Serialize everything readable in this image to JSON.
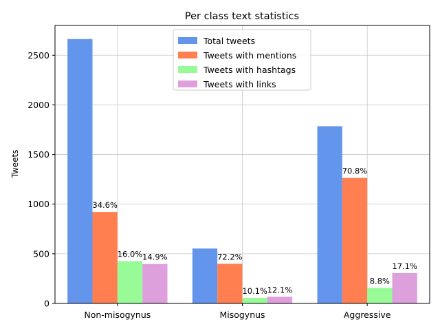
{
  "chart_data": {
    "type": "bar",
    "title": "Per class text statistics",
    "xlabel": "",
    "ylabel": "Tweets",
    "categories": [
      "Non-misogynus",
      "Misogynus",
      "Aggressive"
    ],
    "ylim": [
      0,
      2800
    ],
    "yticks": [
      0,
      500,
      1000,
      1500,
      2000,
      2500
    ],
    "grid": true,
    "legend_position": "top-center",
    "series": [
      {
        "name": "Total tweets",
        "color": "#6495ED",
        "values": [
          2663,
          553,
          1785
        ],
        "labels": [
          "",
          "",
          ""
        ]
      },
      {
        "name": "Tweets with mentions",
        "color": "#FF7F50",
        "values": [
          921,
          399,
          1264
        ],
        "labels": [
          "34.6%",
          "72.2%",
          "70.8%"
        ]
      },
      {
        "name": "Tweets with hashtags",
        "color": "#98FB98",
        "values": [
          426,
          56,
          157
        ],
        "labels": [
          "16.0%",
          "10.1%",
          "8.8%"
        ]
      },
      {
        "name": "Tweets with links",
        "color": "#DDA0DD",
        "values": [
          397,
          67,
          305
        ],
        "labels": [
          "14.9%",
          "12.1%",
          "17.1%"
        ]
      }
    ]
  }
}
